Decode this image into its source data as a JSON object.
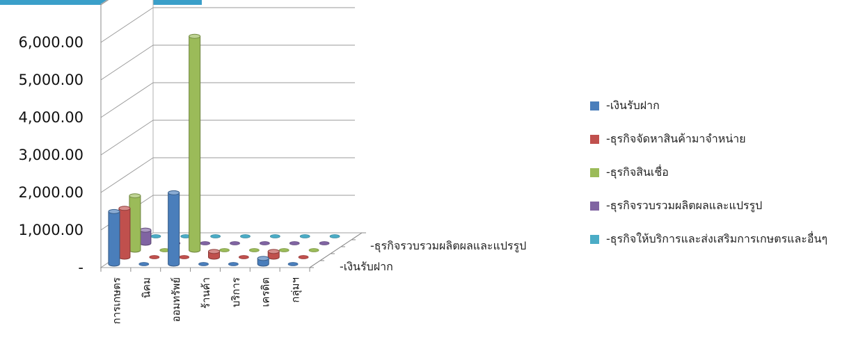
{
  "chart_data": {
    "type": "bar",
    "subtype": "3d-column",
    "categories": [
      "การเกษตร",
      "นิคม",
      "ออมทรัพย์",
      "ร้านค้า",
      "บริการ",
      "เครดิต",
      "กลุ่มฯ"
    ],
    "series": [
      {
        "name": "-เงินรับฝาก",
        "color": "#4a7ebb",
        "values": [
          1400,
          60,
          1900,
          0,
          20,
          150,
          20
        ]
      },
      {
        "name": "-ธุรกิจจัดหาสินค้ามาจำหน่าย",
        "color": "#c0504d",
        "values": [
          1300,
          40,
          0,
          150,
          20,
          150,
          40
        ]
      },
      {
        "name": "-ธุรกิจสินเชื่อ",
        "color": "#9bbb59",
        "values": [
          1450,
          0,
          5700,
          0,
          20,
          20,
          20
        ]
      },
      {
        "name": "-ธุรกิจรวบรวมผลิตผลและแปรรูป",
        "color": "#8064a2",
        "values": [
          350,
          0,
          0,
          0,
          20,
          20,
          20
        ]
      },
      {
        "name": "-ธุรกิจให้บริการและส่งเสริมการเกษตรและอื่นๆ",
        "color": "#4bacc6",
        "values": [
          20,
          0,
          0,
          0,
          20,
          20,
          20
        ]
      }
    ],
    "y_ticks": [
      "-",
      "1,000.00",
      "2,000.00",
      "3,000.00",
      "4,000.00",
      "5,000.00",
      "6,000.00"
    ],
    "depth_labels": [
      "-ธุรกิจรวบรวมผลิตผลและแปรรูป",
      "-เงินรับฝาก"
    ],
    "ylim": [
      0,
      6000
    ],
    "grid": true,
    "legend_position": "right"
  }
}
